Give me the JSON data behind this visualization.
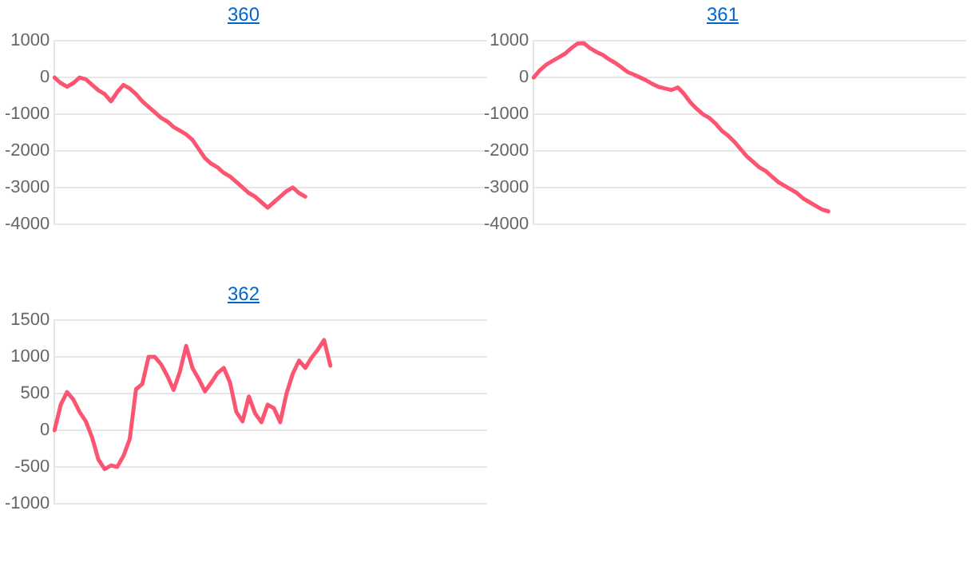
{
  "chart_data": [
    {
      "type": "line",
      "title": "360",
      "categories": [
        null,
        null,
        null,
        null,
        null,
        null,
        null,
        null,
        null,
        null,
        null,
        null,
        null,
        null,
        null,
        null,
        null,
        null,
        null,
        null,
        null,
        null,
        null,
        null,
        null,
        null,
        null,
        null,
        null,
        null,
        null,
        null,
        null,
        null,
        null,
        null,
        null,
        null,
        null,
        null,
        null,
        null,
        null,
        null,
        null,
        null,
        null,
        null,
        null,
        null,
        null,
        null,
        null,
        null,
        null,
        null,
        null,
        null,
        null,
        null,
        null,
        null,
        null,
        null,
        null,
        null,
        null,
        null,
        null,
        null
      ],
      "ylim": [
        -4000,
        1000
      ],
      "yticks": [
        -4000,
        -3000,
        -2000,
        -1000,
        0,
        1000
      ],
      "grid": "y",
      "tick_labels": "y",
      "marker": "none",
      "line_style": "solid",
      "series": [
        {
          "color": "#fb5571",
          "values": [
            0,
            -150,
            -250,
            -150,
            0,
            -50,
            -200,
            -350,
            -450,
            -650,
            -400,
            -200,
            -300,
            -450,
            -650,
            -800,
            -950,
            -1100,
            -1200,
            -1350,
            -1450,
            -1550,
            -1700,
            -1950,
            -2200,
            -2350,
            -2450,
            -2600,
            -2700,
            -2850,
            -3000,
            -3150,
            -3250,
            -3400,
            -3550,
            -3400,
            -3250,
            -3100,
            -3000,
            -3150,
            -3250,
            null,
            null,
            null,
            null,
            null,
            null,
            null,
            null,
            null,
            null,
            null,
            null,
            null,
            null,
            null,
            null,
            null,
            null,
            null,
            null,
            null,
            null,
            null,
            null,
            null,
            null,
            null,
            null,
            null
          ]
        }
      ]
    },
    {
      "type": "line",
      "title": "361",
      "categories": [
        null,
        null,
        null,
        null,
        null,
        null,
        null,
        null,
        null,
        null,
        null,
        null,
        null,
        null,
        null,
        null,
        null,
        null,
        null,
        null,
        null,
        null,
        null,
        null,
        null,
        null,
        null,
        null,
        null,
        null,
        null,
        null,
        null,
        null,
        null,
        null,
        null,
        null,
        null,
        null,
        null,
        null,
        null,
        null,
        null,
        null,
        null,
        null,
        null,
        null,
        null,
        null,
        null,
        null,
        null,
        null,
        null,
        null,
        null,
        null,
        null,
        null,
        null,
        null,
        null,
        null,
        null,
        null,
        null,
        null
      ],
      "ylim": [
        -4000,
        1000
      ],
      "yticks": [
        -4000,
        -3000,
        -2000,
        -1000,
        0,
        1000
      ],
      "grid": "y",
      "tick_labels": "y",
      "marker": "none",
      "line_style": "solid",
      "series": [
        {
          "color": "#fb5571",
          "values": [
            0,
            200,
            350,
            450,
            550,
            650,
            800,
            930,
            940,
            800,
            700,
            620,
            500,
            400,
            280,
            150,
            80,
            0,
            -80,
            -180,
            -260,
            -300,
            -340,
            -270,
            -450,
            -680,
            -850,
            -1000,
            -1100,
            -1250,
            -1450,
            -1580,
            -1750,
            -1950,
            -2150,
            -2300,
            -2450,
            -2550,
            -2700,
            -2850,
            -2950,
            -3050,
            -3150,
            -3300,
            -3400,
            -3500,
            -3600,
            -3650,
            null,
            null,
            null,
            null,
            null,
            null,
            null,
            null,
            null,
            null,
            null,
            null,
            null,
            null,
            null,
            null,
            null,
            null,
            null,
            null,
            null,
            null
          ]
        }
      ]
    },
    {
      "type": "line",
      "title": "362",
      "categories": [
        null,
        null,
        null,
        null,
        null,
        null,
        null,
        null,
        null,
        null,
        null,
        null,
        null,
        null,
        null,
        null,
        null,
        null,
        null,
        null,
        null,
        null,
        null,
        null,
        null,
        null,
        null,
        null,
        null,
        null,
        null,
        null,
        null,
        null,
        null,
        null,
        null,
        null,
        null,
        null,
        null,
        null,
        null,
        null,
        null,
        null,
        null,
        null,
        null,
        null,
        null,
        null,
        null,
        null,
        null,
        null,
        null,
        null,
        null,
        null,
        null,
        null,
        null,
        null,
        null,
        null,
        null,
        null,
        null,
        null
      ],
      "ylim": [
        -1000,
        1500
      ],
      "yticks": [
        -1000,
        -500,
        0,
        500,
        1000,
        1500
      ],
      "grid": "y",
      "tick_labels": "y",
      "marker": "none",
      "line_style": "solid",
      "series": [
        {
          "color": "#fb5571",
          "values": [
            0,
            350,
            520,
            420,
            250,
            120,
            -100,
            -400,
            -530,
            -480,
            -500,
            -350,
            -120,
            560,
            630,
            1000,
            1000,
            900,
            740,
            550,
            800,
            1150,
            850,
            700,
            530,
            650,
            780,
            850,
            650,
            250,
            120,
            460,
            230,
            110,
            350,
            300,
            110,
            500,
            770,
            950,
            850,
            990,
            1100,
            1230,
            880,
            null,
            null,
            null,
            null,
            null,
            null,
            null,
            null,
            null,
            null,
            null,
            null,
            null,
            null,
            null,
            null,
            null,
            null,
            null,
            null,
            null,
            null,
            null,
            null,
            null
          ]
        }
      ]
    }
  ]
}
